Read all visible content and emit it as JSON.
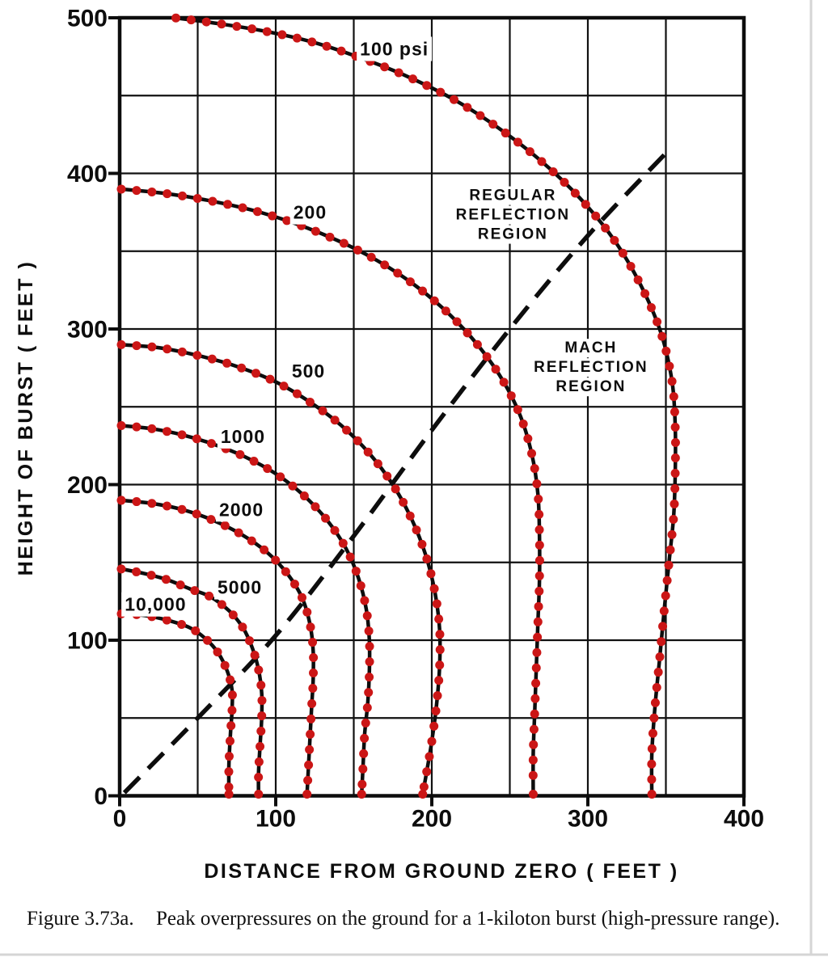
{
  "figure": {
    "caption_label": "Figure 3.73a.",
    "caption_text": "Peak overpressures on the ground for a 1-kiloton burst (high-pressure range).",
    "x_axis_title": "DISTANCE FROM GROUND ZERO ( FEET )",
    "y_axis_title": "HEIGHT OF BURST ( FEET )"
  },
  "style": {
    "ink_color": "#0d0d0d",
    "dot_color": "#cb1616",
    "page_edge_color": "#d5d5d5"
  },
  "chart_data": {
    "type": "line",
    "title": "",
    "xlabel": "DISTANCE FROM GROUND ZERO (FEET)",
    "ylabel": "HEIGHT OF BURST (FEET)",
    "xlim": [
      0,
      400
    ],
    "ylim": [
      0,
      500
    ],
    "x_ticks": [
      0,
      100,
      200,
      300,
      400
    ],
    "y_ticks": [
      0,
      100,
      200,
      300,
      400,
      500
    ],
    "grid_step": 50,
    "grid": true,
    "legend_position": "none",
    "annotations": [
      {
        "id": "regular-reflection-region",
        "lines": [
          "REGULAR",
          "REFLECTION",
          "REGION"
        ],
        "x": 252,
        "y": 374
      },
      {
        "id": "mach-reflection-region",
        "lines": [
          "MACH",
          "REFLECTION",
          "REGION"
        ],
        "x": 302,
        "y": 276
      }
    ],
    "boundary_line": {
      "style": "dashed",
      "points": [
        [
          3,
          2
        ],
        [
          50,
          50
        ],
        [
          100,
          103
        ],
        [
          150,
          167
        ],
        [
          200,
          235
        ],
        [
          250,
          300
        ],
        [
          300,
          360
        ],
        [
          350,
          413
        ]
      ]
    },
    "series": [
      {
        "psi": 100,
        "label": "100 psi",
        "label_x": 176,
        "label_y": 480,
        "points": [
          [
            35,
            500
          ],
          [
            65,
            496
          ],
          [
            95,
            491
          ],
          [
            125,
            484
          ],
          [
            155,
            474
          ],
          [
            185,
            462
          ],
          [
            215,
            447
          ],
          [
            243,
            429
          ],
          [
            270,
            408
          ],
          [
            295,
            384
          ],
          [
            317,
            357
          ],
          [
            334,
            328
          ],
          [
            347,
            297
          ],
          [
            354,
            266
          ],
          [
            356,
            237
          ],
          [
            356,
            208
          ],
          [
            355,
            180
          ],
          [
            352,
            150
          ],
          [
            349,
            120
          ],
          [
            346,
            88
          ],
          [
            343,
            57
          ],
          [
            341,
            27
          ],
          [
            341,
            0
          ]
        ]
      },
      {
        "psi": 200,
        "label": "200",
        "label_x": 122,
        "label_y": 375,
        "points": [
          [
            0,
            390
          ],
          [
            30,
            387
          ],
          [
            60,
            382
          ],
          [
            90,
            375
          ],
          [
            120,
            365
          ],
          [
            150,
            352
          ],
          [
            178,
            336
          ],
          [
            203,
            317
          ],
          [
            225,
            295
          ],
          [
            243,
            271
          ],
          [
            256,
            246
          ],
          [
            264,
            220
          ],
          [
            268,
            194
          ],
          [
            269,
            167
          ],
          [
            269,
            139
          ],
          [
            268,
            111
          ],
          [
            267,
            83
          ],
          [
            266,
            55
          ],
          [
            265,
            27
          ],
          [
            265,
            0
          ]
        ]
      },
      {
        "psi": 500,
        "label": "500",
        "label_x": 121,
        "label_y": 273,
        "points": [
          [
            0,
            290
          ],
          [
            25,
            288
          ],
          [
            50,
            283
          ],
          [
            75,
            276
          ],
          [
            100,
            266
          ],
          [
            122,
            253
          ],
          [
            142,
            238
          ],
          [
            160,
            220
          ],
          [
            175,
            200
          ],
          [
            187,
            178
          ],
          [
            196,
            155
          ],
          [
            202,
            131
          ],
          [
            205,
            107
          ],
          [
            205,
            83
          ],
          [
            203,
            58
          ],
          [
            200,
            35
          ],
          [
            197,
            17
          ],
          [
            194,
            0
          ]
        ]
      },
      {
        "psi": 1000,
        "label": "1000",
        "label_x": 79,
        "label_y": 231,
        "points": [
          [
            0,
            238
          ],
          [
            20,
            236
          ],
          [
            40,
            232
          ],
          [
            60,
            226
          ],
          [
            80,
            218
          ],
          [
            100,
            207
          ],
          [
            118,
            193
          ],
          [
            133,
            177
          ],
          [
            145,
            159
          ],
          [
            153,
            140
          ],
          [
            158,
            120
          ],
          [
            160,
            100
          ],
          [
            160,
            80
          ],
          [
            159,
            60
          ],
          [
            157,
            40
          ],
          [
            156,
            20
          ],
          [
            155,
            0
          ]
        ]
      },
      {
        "psi": 2000,
        "label": "2000",
        "label_x": 78,
        "label_y": 184,
        "points": [
          [
            0,
            190
          ],
          [
            20,
            188
          ],
          [
            40,
            184
          ],
          [
            60,
            177
          ],
          [
            78,
            168
          ],
          [
            95,
            156
          ],
          [
            108,
            142
          ],
          [
            117,
            127
          ],
          [
            122,
            110
          ],
          [
            124,
            93
          ],
          [
            124,
            75
          ],
          [
            123,
            57
          ],
          [
            122,
            38
          ],
          [
            121,
            19
          ],
          [
            120,
            0
          ]
        ]
      },
      {
        "psi": 5000,
        "label": "5000",
        "label_x": 77,
        "label_y": 134,
        "points": [
          [
            0,
            146
          ],
          [
            15,
            143
          ],
          [
            30,
            139
          ],
          [
            45,
            133
          ],
          [
            58,
            128
          ],
          [
            70,
            119
          ],
          [
            79,
            108
          ],
          [
            85,
            95
          ],
          [
            89,
            81
          ],
          [
            91,
            66
          ],
          [
            91,
            50
          ],
          [
            90,
            33
          ],
          [
            89,
            15
          ],
          [
            89,
            0
          ]
        ]
      },
      {
        "psi": 10000,
        "label": "10,000",
        "label_x": 23,
        "label_y": 123,
        "points": [
          [
            0,
            117
          ],
          [
            15,
            116
          ],
          [
            30,
            113
          ],
          [
            45,
            108
          ],
          [
            55,
            101
          ],
          [
            63,
            92
          ],
          [
            69,
            80
          ],
          [
            72,
            68
          ],
          [
            72,
            55
          ],
          [
            71,
            40
          ],
          [
            70,
            20
          ],
          [
            70,
            0
          ]
        ]
      }
    ]
  }
}
